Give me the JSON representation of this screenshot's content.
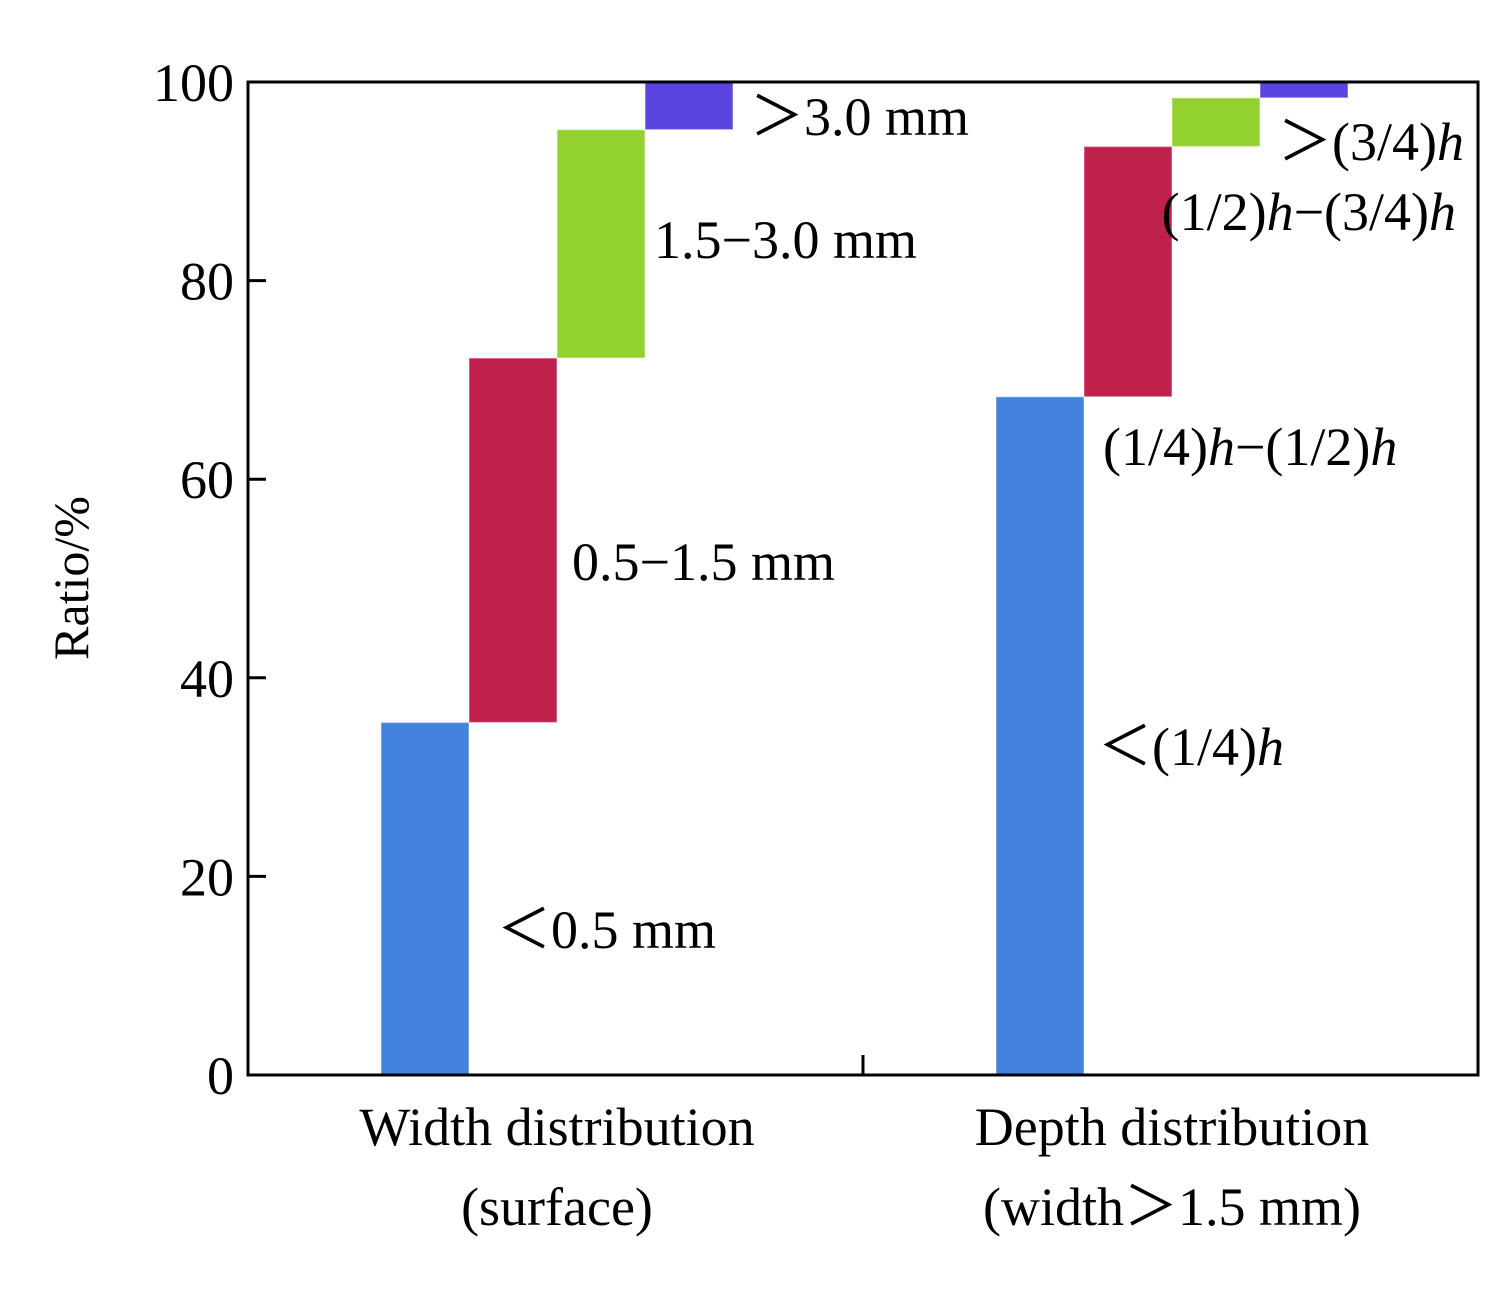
{
  "chart_data": {
    "type": "bar",
    "subtype": "stacked-waterfall",
    "ylabel": "Ratio/%",
    "ylim": [
      0,
      100
    ],
    "yticks": [
      0,
      20,
      40,
      60,
      80,
      100
    ],
    "grid": false,
    "groups": [
      {
        "label_lines": [
          "Width distribution",
          "(surface)"
        ],
        "segments": [
          {
            "label": "<0.5 mm",
            "start": 0,
            "end": 35.5,
            "color": "#4282dc"
          },
          {
            "label": "0.5−1.5 mm",
            "start": 35.5,
            "end": 72.2,
            "color": "#c0204c"
          },
          {
            "label": "1.5−3.0 mm",
            "start": 72.2,
            "end": 95.2,
            "color": "#92d12e"
          },
          {
            "label": ">3.0 mm",
            "start": 95.2,
            "end": 100,
            "color": "#5b45e0"
          }
        ]
      },
      {
        "label_lines": [
          "Depth distribution",
          "(width>1.5 mm)"
        ],
        "segments": [
          {
            "label": "<(1/4)h",
            "start": 0,
            "end": 68.3,
            "color": "#4282dc"
          },
          {
            "label": "(1/4)h−(1/2)h",
            "start": 68.3,
            "end": 93.5,
            "color": "#c0204c"
          },
          {
            "label": "(1/2)h−(3/4)h",
            "start": 93.5,
            "end": 98.4,
            "color": "#92d12e"
          },
          {
            "label": ">(3/4)h",
            "start": 98.4,
            "end": 100,
            "color": "#5b45e0"
          }
        ]
      }
    ]
  }
}
